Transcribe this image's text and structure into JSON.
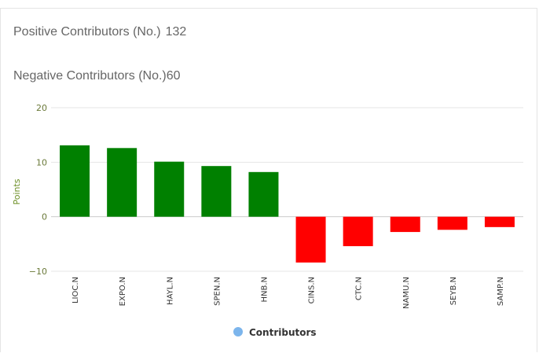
{
  "stats": {
    "positive_label": "Positive Contributors (No.)",
    "positive_value": "132",
    "negative_label": "Negative Contributors (No.)",
    "negative_value": "60"
  },
  "chart_data": {
    "type": "bar",
    "title": "",
    "xlabel": "",
    "ylabel": "Points",
    "ylim": [
      -10,
      20
    ],
    "yticks": [
      -10,
      0,
      10,
      20
    ],
    "ytick_labels": [
      "−10",
      "0",
      "10",
      "20"
    ],
    "categories": [
      "LIOC.N",
      "EXPO.N",
      "HAYL.N",
      "SPEN.N",
      "HNB.N",
      "CINS.N",
      "CTC.N",
      "NAMU.N",
      "SEYB.N",
      "SAMP.N"
    ],
    "series": [
      {
        "name": "Contributors",
        "values": [
          13.1,
          12.6,
          10.1,
          9.3,
          8.2,
          -8.4,
          -5.4,
          -2.8,
          -2.4,
          -1.9
        ]
      }
    ],
    "grid": true,
    "legend": "bottom-center",
    "colors": {
      "positive": "#008000",
      "negative": "#ff0000",
      "legend_marker": "#7cb5ec"
    }
  }
}
